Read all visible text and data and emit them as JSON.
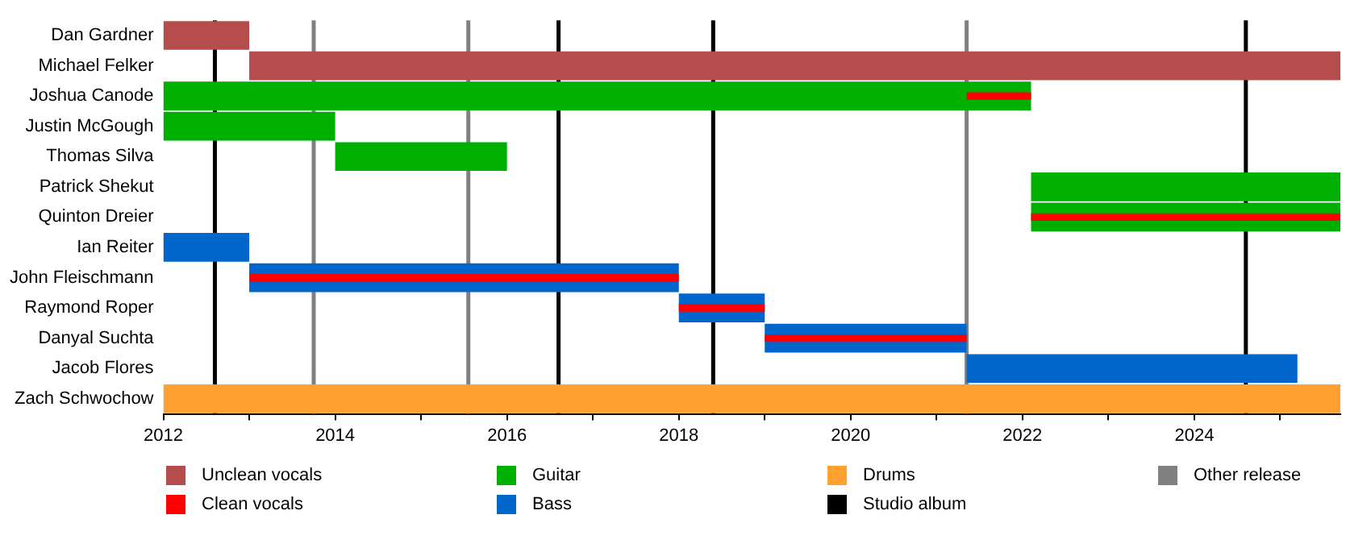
{
  "chart_data": {
    "type": "bar",
    "orientation": "horizontal",
    "categories": [
      "Dan Gardner",
      "Michael Felker",
      "Joshua Canode",
      "Justin McGough",
      "Thomas Silva",
      "Patrick Shekut",
      "Quinton Dreier",
      "Ian Reiter",
      "John Fleischmann",
      "Raymond Roper",
      "Danyal Suchta",
      "Jacob Flores",
      "Zach Schwochow"
    ],
    "series": [
      {
        "name": "Unclean vocals",
        "color": "#b54d4d",
        "base": [
          2012,
          2013,
          null,
          null,
          null,
          null,
          null,
          null,
          null,
          null,
          null,
          null,
          null
        ],
        "values": [
          1,
          12.7,
          null,
          null,
          null,
          null,
          null,
          null,
          null,
          null,
          null,
          null,
          null
        ]
      },
      {
        "name": "Clean vocals",
        "color": "#ff0000",
        "base": [
          null,
          null,
          2021.35,
          null,
          null,
          null,
          2022.1,
          null,
          2013,
          2018,
          2019,
          null,
          null
        ],
        "values": [
          null,
          null,
          0.75,
          null,
          null,
          null,
          3.6,
          null,
          5,
          1,
          2.35,
          null,
          null
        ]
      },
      {
        "name": "Guitar",
        "color": "#00b000",
        "base": [
          null,
          null,
          2012,
          2012,
          2014,
          2022.1,
          2022.1,
          null,
          null,
          null,
          null,
          null,
          null
        ],
        "values": [
          null,
          null,
          10.1,
          2,
          2,
          3.6,
          3.6,
          null,
          null,
          null,
          null,
          null,
          null
        ]
      },
      {
        "name": "Bass",
        "color": "#0066cc",
        "base": [
          null,
          null,
          null,
          null,
          null,
          null,
          null,
          2012,
          2013,
          2018,
          2019,
          2021.35,
          null
        ],
        "values": [
          null,
          null,
          null,
          null,
          null,
          null,
          null,
          1,
          5,
          1,
          2.35,
          3.85,
          null
        ]
      },
      {
        "name": "Drums",
        "color": "#ffa030",
        "base": [
          null,
          null,
          null,
          null,
          null,
          null,
          null,
          null,
          null,
          null,
          null,
          null,
          2012
        ],
        "values": [
          null,
          null,
          null,
          null,
          null,
          null,
          null,
          null,
          null,
          null,
          null,
          null,
          13.7
        ]
      }
    ],
    "xlim": [
      2012,
      2025.7
    ],
    "xticks": [
      2012,
      {
        "value": 2013,
        "label": null
      },
      2014,
      {
        "value": 2015,
        "label": null
      },
      2016,
      {
        "value": 2017,
        "label": null
      },
      2018,
      {
        "value": 2019,
        "label": null
      },
      2020,
      {
        "value": 2021,
        "label": null
      },
      2022,
      {
        "value": 2023,
        "label": null
      },
      2024,
      {
        "value": 2025,
        "label": null
      }
    ],
    "ref_lines": [
      {
        "axis": "x",
        "value": 2012.6,
        "label": "Studio album",
        "color": "#000000"
      },
      {
        "axis": "x",
        "value": 2016.6,
        "color": "#000000"
      },
      {
        "axis": "x",
        "value": 2018.4,
        "color": "#000000"
      },
      {
        "axis": "x",
        "value": 2024.6,
        "color": "#000000"
      },
      {
        "axis": "x",
        "value": 2013.75,
        "label": "Other release",
        "color": "#808080"
      },
      {
        "axis": "x",
        "value": 2015.55,
        "color": "#808080"
      },
      {
        "axis": "x",
        "value": 2021.35,
        "color": "#808080"
      }
    ],
    "grid": false,
    "legend": "bottom"
  }
}
